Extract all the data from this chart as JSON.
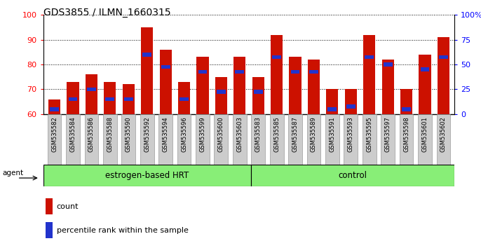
{
  "title": "GDS3855 / ILMN_1660315",
  "samples": [
    "GSM535582",
    "GSM535584",
    "GSM535586",
    "GSM535588",
    "GSM535590",
    "GSM535592",
    "GSM535594",
    "GSM535596",
    "GSM535599",
    "GSM535600",
    "GSM535603",
    "GSM535583",
    "GSM535585",
    "GSM535587",
    "GSM535589",
    "GSM535591",
    "GSM535593",
    "GSM535595",
    "GSM535597",
    "GSM535598",
    "GSM535601",
    "GSM535602"
  ],
  "count_values": [
    66,
    73,
    76,
    73,
    72,
    95,
    86,
    73,
    83,
    75,
    83,
    75,
    92,
    83,
    82,
    70,
    70,
    92,
    82,
    70,
    84,
    91
  ],
  "percentile_values": [
    62,
    66,
    70,
    66,
    66,
    84,
    79,
    66,
    77,
    69,
    77,
    69,
    83,
    77,
    77,
    62,
    63,
    83,
    80,
    62,
    78,
    83
  ],
  "group1_label": "estrogen-based HRT",
  "group2_label": "control",
  "group1_count": 11,
  "group2_count": 11,
  "ylim_left": [
    60,
    100
  ],
  "ylim_right": [
    0,
    100
  ],
  "bar_color": "#cc1100",
  "percentile_color": "#2233cc",
  "group_color": "#88ee77",
  "agent_label": "agent",
  "legend_count": "count",
  "legend_percentile": "percentile rank within the sample",
  "left_yticks": [
    60,
    70,
    80,
    90,
    100
  ],
  "right_yticks": [
    0,
    25,
    50,
    75,
    100
  ],
  "right_yticklabels": [
    "0",
    "25",
    "50",
    "75",
    "100%"
  ]
}
